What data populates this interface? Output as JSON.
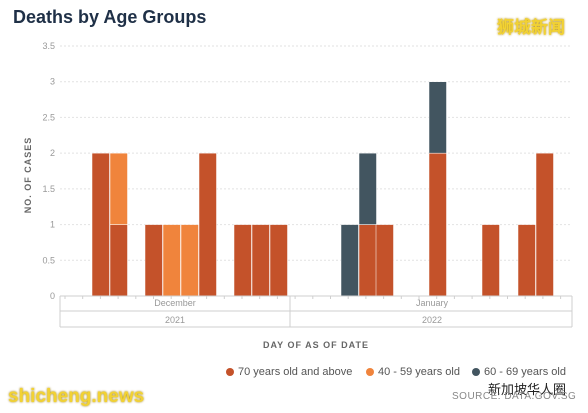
{
  "title": "Deaths by Age Groups",
  "watermark_top": "狮城新闻",
  "watermark_bottom": "shicheng.news",
  "watermark_bottom_right": "新加坡华人圈",
  "source": "SOURCE: DATA.GOV.SG",
  "chart_data": {
    "type": "bar",
    "stacked": true,
    "ylabel": "NO. OF CASES",
    "xlabel": "DAY OF AS OF DATE",
    "ylim": [
      0,
      3.5
    ],
    "yticks": [
      "0",
      "0.5",
      "1",
      "1.5",
      "2",
      "2.5",
      "3",
      "3.5"
    ],
    "month_labels": [
      "December",
      "January"
    ],
    "year_labels": [
      "2021",
      "2022"
    ],
    "grid": true,
    "legend_position": "bottom-right",
    "series": [
      {
        "name": "70 years old and above",
        "color": "#c4522a",
        "values": [
          2,
          1,
          1,
          0,
          0,
          2,
          1,
          1,
          1,
          0,
          1,
          1,
          2,
          1,
          1,
          2
        ]
      },
      {
        "name": "40 - 59 years old",
        "color": "#f0843c",
        "values": [
          0,
          1,
          0,
          1,
          1,
          0,
          0,
          0,
          0,
          0,
          0,
          0,
          0,
          0,
          0,
          0
        ]
      },
      {
        "name": "60 - 69 years old",
        "color": "#425560",
        "values": [
          0,
          0,
          0,
          0,
          0,
          0,
          0,
          0,
          0,
          1,
          1,
          0,
          1,
          0,
          0,
          0
        ]
      }
    ]
  }
}
